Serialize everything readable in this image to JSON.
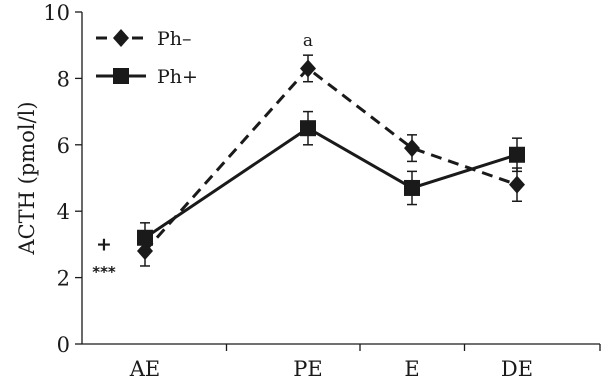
{
  "chart_data": {
    "type": "line",
    "title": "",
    "xlabel": "",
    "ylabel": "ACTH (pmol/l)",
    "categories": [
      "AE",
      "PE",
      "E",
      "DE"
    ],
    "ylim": [
      0,
      10
    ],
    "yticks": [
      "0",
      "2",
      "4",
      "6",
      "8",
      "10"
    ],
    "grid": false,
    "legend_position": "top-left",
    "series": [
      {
        "name": "Ph–",
        "marker": "diamond",
        "line_style": "dashed",
        "color": "#1a1a1a",
        "values": [
          2.8,
          8.3,
          5.9,
          4.8
        ],
        "errors": [
          0.45,
          0.4,
          0.4,
          0.5
        ]
      },
      {
        "name": "Ph+",
        "marker": "square",
        "line_style": "solid",
        "color": "#1a1a1a",
        "values": [
          3.2,
          6.5,
          4.7,
          5.7
        ],
        "errors": [
          0.45,
          0.5,
          0.5,
          0.5
        ]
      }
    ],
    "annotations": [
      {
        "text": "a",
        "category": "PE",
        "y": 9.15
      },
      {
        "text": "+",
        "category": "AE",
        "y": 3.0
      },
      {
        "text": "***",
        "category": "AE",
        "y": 2.2
      }
    ]
  }
}
